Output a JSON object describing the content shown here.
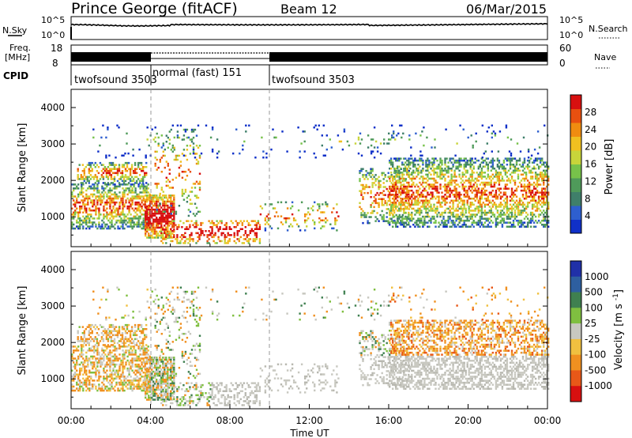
{
  "header": {
    "station": "Prince George (fitACF)",
    "beam": "Beam 12",
    "date": "06/Mar/2015"
  },
  "top_panels": {
    "nsky_label": "N.Sky",
    "nsearch_label": "N.Search",
    "nsky_ticks": [
      "10^5",
      "10^0"
    ],
    "freq_label_1": "Freq.",
    "freq_label_2": "[MHz]",
    "freq_ticks": [
      "18",
      "8"
    ],
    "nave_label": "Nave",
    "nave_ticks": [
      "60",
      "0"
    ],
    "cpid_label": "CPID",
    "cpid_segments": [
      {
        "label": "twofsound 3503",
        "start_h": 0,
        "end_h": 4
      },
      {
        "label": "normal (fast) 151",
        "start_h": 4,
        "end_h": 10
      },
      {
        "label": "twofsound 3503",
        "start_h": 10,
        "end_h": 24
      }
    ]
  },
  "chart_data": [
    {
      "type": "heatmap",
      "panel": "power",
      "ylabel": "Slant Range [km]",
      "ylim": [
        180,
        4500
      ],
      "yticks": [
        1000,
        2000,
        3000,
        4000
      ],
      "colorbar": {
        "label": "Power [dB]",
        "range": [
          0,
          32
        ],
        "ticks": [
          4,
          8,
          12,
          16,
          20,
          24,
          28
        ],
        "colors": [
          "#1030c8",
          "#2e5fcf",
          "#3f7f6a",
          "#4f9a5a",
          "#77c24a",
          "#c8d43a",
          "#f0c020",
          "#f08c10",
          "#e85010",
          "#d81010"
        ]
      }
    },
    {
      "type": "heatmap",
      "panel": "velocity",
      "ylabel": "Slant Range [km]",
      "ylim": [
        180,
        4500
      ],
      "yticks": [
        1000,
        2000,
        3000,
        4000
      ],
      "xlabel": "Time UT",
      "xticks": [
        "00:00",
        "04:00",
        "08:00",
        "12:00",
        "16:00",
        "20:00",
        "00:00"
      ],
      "colorbar": {
        "label": "Velocity [m s^-1]",
        "ticks": [
          "1000",
          "500",
          "100",
          "25",
          "-25",
          "-100",
          "-500",
          "-1000"
        ],
        "colors": [
          "#2030a8",
          "#2e5fa0",
          "#3f8050",
          "#7fbf40",
          "#c8c8c0",
          "#f0c040",
          "#f09020",
          "#e85818",
          "#d81010"
        ]
      }
    }
  ]
}
